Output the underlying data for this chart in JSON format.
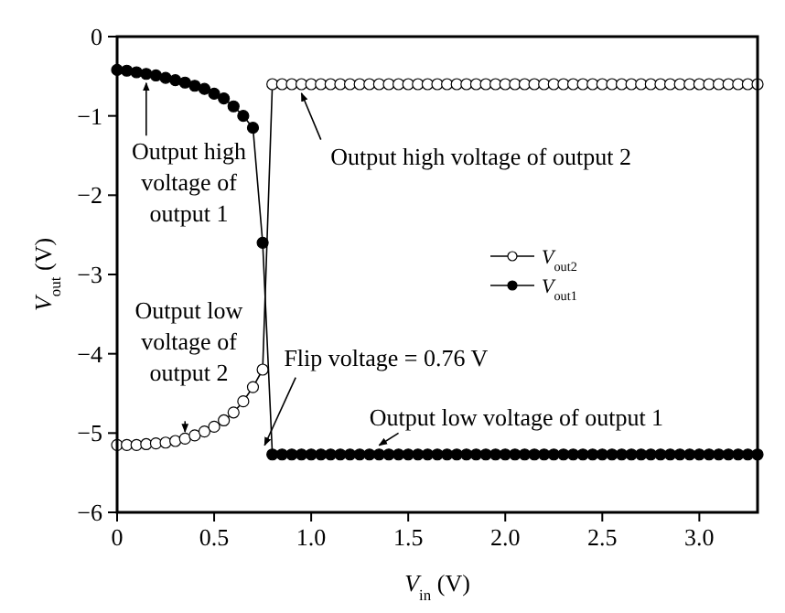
{
  "chart_data": {
    "type": "line",
    "xlabel": "V$_{in}$ (V)",
    "ylabel": "V$_{out}$ (V)",
    "x": [
      0,
      0.05,
      0.1,
      0.15,
      0.2,
      0.25,
      0.3,
      0.35,
      0.4,
      0.45,
      0.5,
      0.55,
      0.6,
      0.65,
      0.7,
      0.75,
      0.8,
      0.85,
      0.9,
      0.95,
      1,
      1.05,
      1.1,
      1.15,
      1.2,
      1.25,
      1.3,
      1.35,
      1.4,
      1.45,
      1.5,
      1.55,
      1.6,
      1.65,
      1.7,
      1.75,
      1.8,
      1.85,
      1.9,
      1.95,
      2,
      2.05,
      2.1,
      2.15,
      2.2,
      2.25,
      2.3,
      2.35,
      2.4,
      2.45,
      2.5,
      2.55,
      2.6,
      2.65,
      2.7,
      2.75,
      2.8,
      2.85,
      2.9,
      2.95,
      3,
      3.05,
      3.1,
      3.15,
      3.2,
      3.25,
      3.3
    ],
    "series": [
      {
        "name": "V$_{out2}$",
        "color": "#000000",
        "values": [
          -5.15,
          -5.15,
          -5.15,
          -5.14,
          -5.13,
          -5.12,
          -5.1,
          -5.07,
          -5.03,
          -4.98,
          -4.92,
          -4.84,
          -4.74,
          -4.6,
          -4.42,
          -4.2,
          -0.6,
          -0.6,
          -0.6,
          -0.6,
          -0.6,
          -0.6,
          -0.6,
          -0.6,
          -0.6,
          -0.6,
          -0.6,
          -0.6,
          -0.6,
          -0.6,
          -0.6,
          -0.6,
          -0.6,
          -0.6,
          -0.6,
          -0.6,
          -0.6,
          -0.6,
          -0.6,
          -0.6,
          -0.6,
          -0.6,
          -0.6,
          -0.6,
          -0.6,
          -0.6,
          -0.6,
          -0.6,
          -0.6,
          -0.6,
          -0.6,
          -0.6,
          -0.6,
          -0.6,
          -0.6,
          -0.6,
          -0.6,
          -0.6,
          -0.6,
          -0.6,
          -0.6,
          -0.6,
          -0.6,
          -0.6,
          -0.6,
          -0.6,
          -0.6
        ]
      },
      {
        "name": "V$_{out1}$",
        "color": "#000000",
        "values": [
          -0.42,
          -0.43,
          -0.45,
          -0.47,
          -0.49,
          -0.52,
          -0.55,
          -0.58,
          -0.62,
          -0.66,
          -0.72,
          -0.78,
          -0.88,
          -1,
          -1.15,
          -2.6,
          -5.27,
          -5.27,
          -5.27,
          -5.27,
          -5.27,
          -5.27,
          -5.27,
          -5.27,
          -5.27,
          -5.27,
          -5.27,
          -5.27,
          -5.27,
          -5.27,
          -5.27,
          -5.27,
          -5.27,
          -5.27,
          -5.27,
          -5.27,
          -5.27,
          -5.27,
          -5.27,
          -5.27,
          -5.27,
          -5.27,
          -5.27,
          -5.27,
          -5.27,
          -5.27,
          -5.27,
          -5.27,
          -5.27,
          -5.27,
          -5.27,
          -5.27,
          -5.27,
          -5.27,
          -5.27,
          -5.27,
          -5.27,
          -5.27,
          -5.27,
          -5.27,
          -5.27,
          -5.27,
          -5.27,
          -5.27,
          -5.27,
          -5.27,
          -5.27
        ]
      }
    ],
    "xlim": [
      0,
      3.3
    ],
    "xticks": [
      {
        "value": 0,
        "label": "0"
      },
      0.5,
      {
        "value": 1,
        "label": "1.0"
      },
      1.5,
      {
        "value": 2,
        "label": "2.0"
      },
      2.5,
      {
        "value": 3,
        "label": "3.0"
      }
    ],
    "ylim": [
      -6,
      0
    ],
    "yticks": [
      -6,
      -5,
      -4,
      -3,
      -2,
      -1,
      0
    ],
    "marker": "circle",
    "line_style": "solid",
    "grid": false,
    "legend": "right",
    "annotations": [
      {
        "text": "Output high voltage of output 1",
        "x": 0.15,
        "y": -0.47
      },
      {
        "text": "Output high voltage of output 2",
        "x": 0.95,
        "y": -0.6
      },
      {
        "text": "Output low voltage of output 2",
        "x": 0.35,
        "y": -5.1
      },
      {
        "text": "Flip voltage = 0.76 V",
        "x": 0.76,
        "y": -5.27
      },
      {
        "text": "Output low voltage of output 1",
        "x": 1.35,
        "y": -5.27
      }
    ]
  }
}
